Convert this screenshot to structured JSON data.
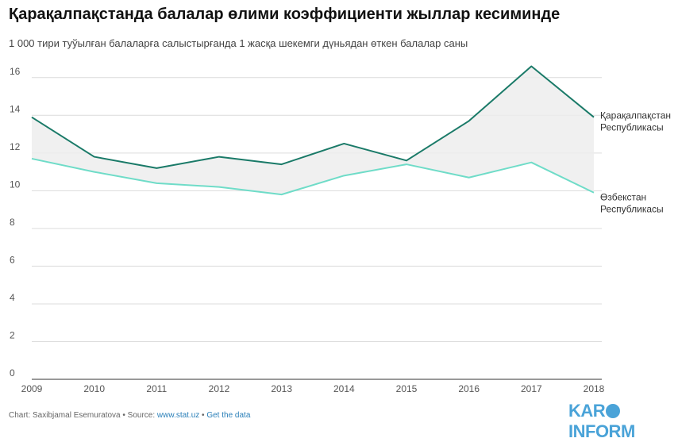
{
  "header": {
    "title": "Қарақалпақстанда балалар өлими коэффициенти жыллар кесиминде",
    "subtitle": "1 000 тири туўылған балаларға салыстырғанда 1 жасқа шекемги дүньядан өткен балалар саны"
  },
  "footer": {
    "prefix": "Chart: Saxibjamal Esemuratova • Source: ",
    "source_link": "www.stat.uz",
    "separator": " • ",
    "data_link": "Get the data"
  },
  "logo": {
    "part1": "KAR",
    "part2": "INFORM"
  },
  "chart_data": {
    "type": "line",
    "x": [
      "2009",
      "2010",
      "2011",
      "2012",
      "2013",
      "2014",
      "2015",
      "2016",
      "2017",
      "2018"
    ],
    "series": [
      {
        "name": "Қарақалпақстан Республикасы",
        "label_lines": [
          "Қарақалпақстан",
          "Республикасы"
        ],
        "color": "#1a7a68",
        "values": [
          13.9,
          11.8,
          11.2,
          11.8,
          11.4,
          12.5,
          11.6,
          13.7,
          16.6,
          13.9
        ]
      },
      {
        "name": "Өзбекстан Республикасы",
        "label_lines": [
          "Өзбекстан",
          "Республикасы"
        ],
        "color": "#6fdcc8",
        "values": [
          11.7,
          11.0,
          10.4,
          10.2,
          9.8,
          10.8,
          11.4,
          10.7,
          11.5,
          9.9
        ]
      }
    ],
    "yticks": [
      0,
      2,
      4,
      6,
      8,
      10,
      12,
      14,
      16
    ],
    "ylim": [
      0,
      17
    ],
    "grid": true,
    "fill_between": "#ececec"
  }
}
